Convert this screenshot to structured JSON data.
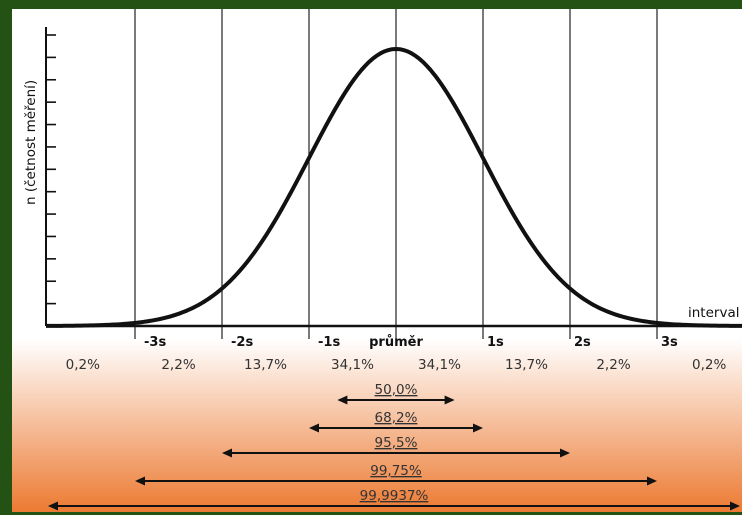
{
  "chart_data": {
    "type": "line",
    "ylabel": "n (četnost měření)",
    "xlabel": "interval",
    "sigma_labels": [
      {
        "label": "-3s",
        "sigma": -3
      },
      {
        "label": "-2s",
        "sigma": -2
      },
      {
        "label": "-1s",
        "sigma": -1
      },
      {
        "label": "průměr",
        "sigma": 0
      },
      {
        "label": "1s",
        "sigma": 1
      },
      {
        "label": "2s",
        "sigma": 2
      },
      {
        "label": "3s",
        "sigma": 3
      }
    ],
    "band_percentages": [
      "0,2%",
      "2,2%",
      "13,7%",
      "34,1%",
      "34,1%",
      "13,7%",
      "2,2%",
      "0,2%"
    ],
    "ranges": [
      {
        "label": "50,0%",
        "from": -0.674,
        "to": 0.674
      },
      {
        "label": "68,2%",
        "from": -1,
        "to": 1
      },
      {
        "label": "95,5%",
        "from": -2,
        "to": 2
      },
      {
        "label": "99,75%",
        "from": -3,
        "to": 3
      },
      {
        "label": "99,9937%",
        "from": -4,
        "to": 4
      }
    ],
    "x_range": [
      -4,
      4
    ],
    "y_tick_count": 13
  },
  "colors": {
    "frame": "#245214",
    "curve": "#111111",
    "gradient_top": "#ffffff",
    "gradient_bottom": "#ec7a32"
  }
}
